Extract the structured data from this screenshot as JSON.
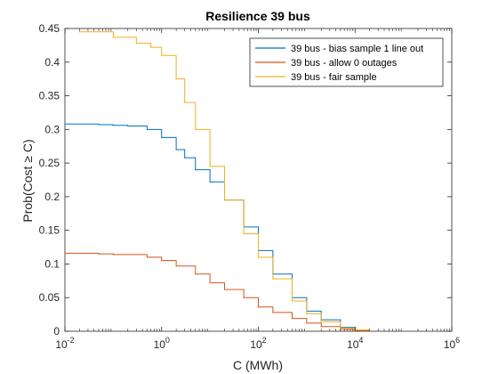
{
  "chart_data": {
    "type": "line",
    "title": "Resilience 39 bus",
    "xlabel": "C (MWh)",
    "ylabel": "Prob(Cost ≥ C)",
    "xscale": "log",
    "xlim": [
      0.01,
      1000000
    ],
    "ylim": [
      0,
      0.45
    ],
    "x_ticks": [
      {
        "value": 0.01,
        "base": "10",
        "exp": "-2"
      },
      {
        "value": 1,
        "base": "10",
        "exp": "0"
      },
      {
        "value": 100,
        "base": "10",
        "exp": "2"
      },
      {
        "value": 10000,
        "base": "10",
        "exp": "4"
      },
      {
        "value": 1000000,
        "base": "10",
        "exp": "6"
      }
    ],
    "y_ticks": [
      "0",
      "0.05",
      "0.1",
      "0.15",
      "0.2",
      "0.25",
      "0.3",
      "0.35",
      "0.4",
      "0.45"
    ],
    "grid": false,
    "legend_position": "top-right",
    "series": [
      {
        "name": "39 bus - bias sample 1 line out",
        "color": "#0072BD",
        "points": [
          [
            0.01,
            0.308
          ],
          [
            0.05,
            0.307
          ],
          [
            0.1,
            0.306
          ],
          [
            0.2,
            0.305
          ],
          [
            0.5,
            0.3
          ],
          [
            1,
            0.288
          ],
          [
            2,
            0.27
          ],
          [
            3,
            0.258
          ],
          [
            5,
            0.24
          ],
          [
            10,
            0.222
          ],
          [
            20,
            0.195
          ],
          [
            50,
            0.155
          ],
          [
            100,
            0.12
          ],
          [
            200,
            0.085
          ],
          [
            500,
            0.05
          ],
          [
            1000,
            0.03
          ],
          [
            2000,
            0.017
          ],
          [
            5000,
            0.006
          ],
          [
            10000,
            0.002
          ],
          [
            20000,
            0.0
          ]
        ]
      },
      {
        "name": "39 bus - allow 0 outages",
        "color": "#D95319",
        "points": [
          [
            0.01,
            0.116
          ],
          [
            0.05,
            0.115
          ],
          [
            0.1,
            0.114
          ],
          [
            0.5,
            0.11
          ],
          [
            1,
            0.105
          ],
          [
            2,
            0.097
          ],
          [
            5,
            0.085
          ],
          [
            10,
            0.072
          ],
          [
            20,
            0.062
          ],
          [
            50,
            0.05
          ],
          [
            100,
            0.036
          ],
          [
            200,
            0.028
          ],
          [
            500,
            0.019
          ],
          [
            1000,
            0.012
          ],
          [
            2000,
            0.007
          ],
          [
            5000,
            0.003
          ],
          [
            10000,
            0.001
          ],
          [
            20000,
            0.0
          ]
        ]
      },
      {
        "name": "39 bus - fair sample",
        "color": "#EDB120",
        "points": [
          [
            0.02,
            0.445
          ],
          [
            0.1,
            0.437
          ],
          [
            0.3,
            0.428
          ],
          [
            0.6,
            0.422
          ],
          [
            1,
            0.41
          ],
          [
            2,
            0.375
          ],
          [
            3,
            0.34
          ],
          [
            5,
            0.3
          ],
          [
            10,
            0.245
          ],
          [
            20,
            0.195
          ],
          [
            50,
            0.145
          ],
          [
            100,
            0.11
          ],
          [
            200,
            0.078
          ],
          [
            500,
            0.045
          ],
          [
            1000,
            0.026
          ],
          [
            2000,
            0.014
          ],
          [
            5000,
            0.005
          ],
          [
            10000,
            0.002
          ],
          [
            20000,
            0.0
          ]
        ]
      }
    ]
  }
}
